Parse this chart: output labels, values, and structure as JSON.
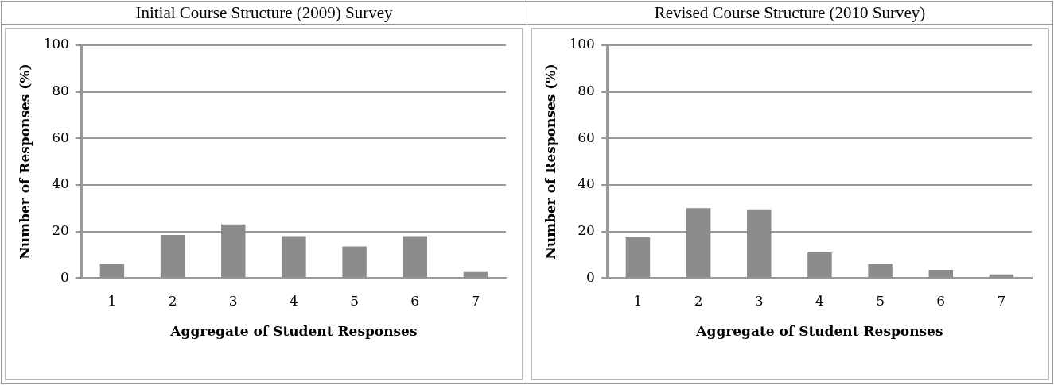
{
  "chart_data": [
    {
      "type": "bar",
      "title": "Initial Course Structure (2009) Survey",
      "xlabel": "Aggregate of Student Responses",
      "ylabel": "Number of Responses (%)",
      "categories": [
        "1",
        "2",
        "3",
        "4",
        "5",
        "6",
        "7"
      ],
      "values": [
        6,
        18.5,
        23,
        18,
        13.5,
        18,
        2.5
      ],
      "color": "#8c8c8c",
      "ylim": [
        0,
        100
      ],
      "yticks": [
        0,
        20,
        40,
        60,
        80,
        100
      ],
      "grid": "y",
      "legend": false
    },
    {
      "type": "bar",
      "title": "Revised Course Structure (2010 Survey)",
      "xlabel": "Aggregate of Student Responses",
      "ylabel": "Number of Responses (%)",
      "categories": [
        "1",
        "2",
        "3",
        "4",
        "5",
        "6",
        "7"
      ],
      "values": [
        17.5,
        30,
        29.5,
        11,
        6,
        3.5,
        1.5
      ],
      "color": "#8c8c8c",
      "ylim": [
        0,
        100
      ],
      "yticks": [
        0,
        20,
        40,
        60,
        80,
        100
      ],
      "grid": "y",
      "legend": false
    }
  ]
}
